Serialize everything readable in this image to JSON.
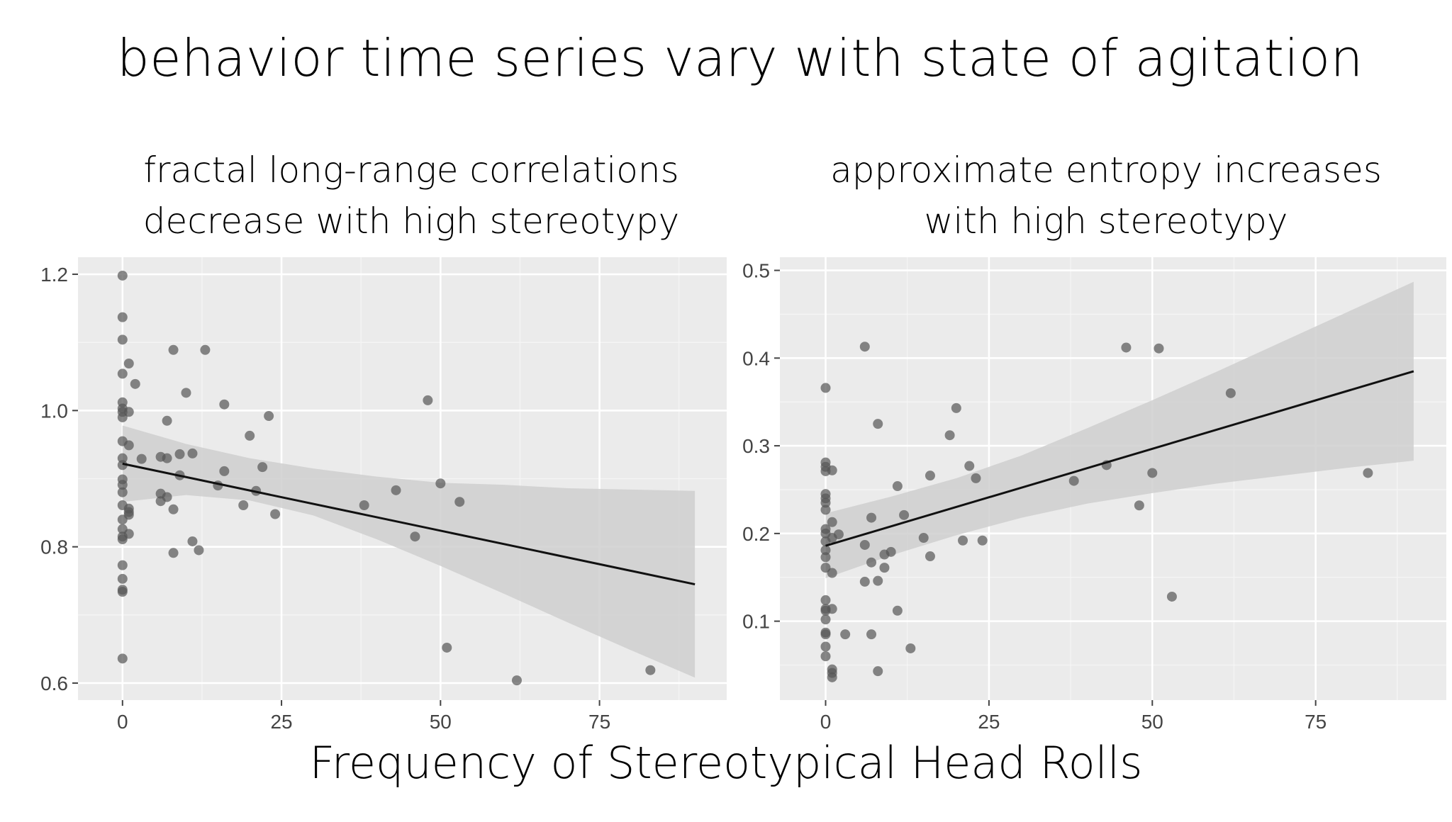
{
  "title": "behavior time series vary with state of agitation",
  "xlabel": "Frequency of Stereotypical Head Rolls",
  "colors": {
    "panel_bg": "#ebebeb",
    "grid_major": "#ffffff",
    "point": "#555555",
    "ribbon": "#cfcfcf",
    "line": "#111111"
  },
  "chart_data": [
    {
      "type": "scatter",
      "subtitle": [
        "fractal long-range correlations",
        "decrease with high stereotypy"
      ],
      "xlim": [
        -7,
        95
      ],
      "ylim": [
        0.575,
        1.225
      ],
      "xticks": [
        0,
        25,
        50,
        75
      ],
      "yticks": [
        0.6,
        0.8,
        1.0,
        1.2
      ],
      "ytick_labels": [
        "0.6",
        "0.8",
        "1.0",
        "1.2"
      ],
      "xtick_labels": [
        "0",
        "25",
        "50",
        "75"
      ],
      "fit": {
        "x": [
          0,
          90
        ],
        "y": [
          0.922,
          0.745
        ]
      },
      "ribbon": {
        "x": [
          0,
          10,
          20,
          30,
          40,
          50,
          60,
          70,
          80,
          90
        ],
        "lower": [
          0.866,
          0.876,
          0.868,
          0.846,
          0.811,
          0.772,
          0.731,
          0.689,
          0.648,
          0.608
        ],
        "upper": [
          0.978,
          0.951,
          0.93,
          0.915,
          0.903,
          0.894,
          0.891,
          0.886,
          0.884,
          0.882
        ]
      },
      "points": [
        [
          0,
          1.198
        ],
        [
          0,
          1.137
        ],
        [
          0,
          1.104
        ],
        [
          0,
          1.054
        ],
        [
          0,
          1.012
        ],
        [
          0,
          1.003
        ],
        [
          0,
          0.998
        ],
        [
          0,
          0.99
        ],
        [
          0,
          0.955
        ],
        [
          0,
          0.93
        ],
        [
          0,
          0.92
        ],
        [
          0,
          0.899
        ],
        [
          0,
          0.891
        ],
        [
          0,
          0.88
        ],
        [
          0,
          0.861
        ],
        [
          0,
          0.84
        ],
        [
          0,
          0.826
        ],
        [
          0,
          0.815
        ],
        [
          0,
          0.811
        ],
        [
          0,
          0.773
        ],
        [
          0,
          0.753
        ],
        [
          0,
          0.737
        ],
        [
          0,
          0.734
        ],
        [
          0,
          0.636
        ],
        [
          1,
          1.069
        ],
        [
          1,
          0.998
        ],
        [
          1,
          0.949
        ],
        [
          1,
          0.856
        ],
        [
          1,
          0.851
        ],
        [
          1,
          0.847
        ],
        [
          1,
          0.819
        ],
        [
          2,
          1.039
        ],
        [
          3,
          0.929
        ],
        [
          6,
          0.932
        ],
        [
          6,
          0.878
        ],
        [
          6,
          0.867
        ],
        [
          7,
          0.985
        ],
        [
          7,
          0.93
        ],
        [
          7,
          0.873
        ],
        [
          8,
          1.089
        ],
        [
          8,
          0.855
        ],
        [
          8,
          0.791
        ],
        [
          9,
          0.936
        ],
        [
          9,
          0.905
        ],
        [
          10,
          1.026
        ],
        [
          11,
          0.937
        ],
        [
          11,
          0.808
        ],
        [
          12,
          0.795
        ],
        [
          13,
          1.089
        ],
        [
          15,
          0.89
        ],
        [
          16,
          1.009
        ],
        [
          16,
          0.911
        ],
        [
          19,
          0.861
        ],
        [
          20,
          0.963
        ],
        [
          21,
          0.882
        ],
        [
          22,
          0.917
        ],
        [
          23,
          0.992
        ],
        [
          24,
          0.848
        ],
        [
          38,
          0.861
        ],
        [
          43,
          0.883
        ],
        [
          46,
          0.815
        ],
        [
          48,
          1.015
        ],
        [
          50,
          0.893
        ],
        [
          51,
          0.652
        ],
        [
          53,
          0.866
        ],
        [
          62,
          0.604
        ],
        [
          83,
          0.619
        ]
      ]
    },
    {
      "type": "scatter",
      "subtitle": [
        "approximate entropy increases",
        "with high stereotypy"
      ],
      "xlim": [
        -7,
        95
      ],
      "ylim": [
        0.01,
        0.515
      ],
      "xticks": [
        0,
        25,
        50,
        75
      ],
      "yticks": [
        0.1,
        0.2,
        0.3,
        0.4,
        0.5
      ],
      "ytick_labels": [
        "0.1",
        "0.2",
        "0.3",
        "0.4",
        "0.5"
      ],
      "xtick_labels": [
        "0",
        "25",
        "50",
        "75"
      ],
      "fit": {
        "x": [
          0,
          90
        ],
        "y": [
          0.186,
          0.385
        ]
      },
      "ribbon": {
        "x": [
          0,
          10,
          20,
          30,
          40,
          50,
          60,
          70,
          80,
          90
        ],
        "lower": [
          0.149,
          0.175,
          0.198,
          0.218,
          0.234,
          0.246,
          0.257,
          0.266,
          0.275,
          0.283
        ],
        "upper": [
          0.223,
          0.242,
          0.263,
          0.289,
          0.32,
          0.352,
          0.385,
          0.419,
          0.453,
          0.487
        ]
      },
      "points": [
        [
          0,
          0.366
        ],
        [
          0,
          0.281
        ],
        [
          0,
          0.276
        ],
        [
          0,
          0.271
        ],
        [
          0,
          0.245
        ],
        [
          0,
          0.24
        ],
        [
          0,
          0.235
        ],
        [
          0,
          0.227
        ],
        [
          0,
          0.205
        ],
        [
          0,
          0.2
        ],
        [
          0,
          0.191
        ],
        [
          0,
          0.181
        ],
        [
          0,
          0.173
        ],
        [
          0,
          0.161
        ],
        [
          0,
          0.124
        ],
        [
          0,
          0.114
        ],
        [
          0,
          0.112
        ],
        [
          0,
          0.102
        ],
        [
          0,
          0.087
        ],
        [
          0,
          0.085
        ],
        [
          0,
          0.071
        ],
        [
          0,
          0.06
        ],
        [
          1,
          0.272
        ],
        [
          1,
          0.213
        ],
        [
          1,
          0.195
        ],
        [
          1,
          0.155
        ],
        [
          1,
          0.114
        ],
        [
          1,
          0.045
        ],
        [
          1,
          0.041
        ],
        [
          1,
          0.036
        ],
        [
          2,
          0.199
        ],
        [
          3,
          0.085
        ],
        [
          6,
          0.413
        ],
        [
          6,
          0.187
        ],
        [
          6,
          0.145
        ],
        [
          7,
          0.218
        ],
        [
          7,
          0.167
        ],
        [
          7,
          0.085
        ],
        [
          8,
          0.325
        ],
        [
          8,
          0.146
        ],
        [
          8,
          0.043
        ],
        [
          9,
          0.176
        ],
        [
          9,
          0.161
        ],
        [
          10,
          0.179
        ],
        [
          11,
          0.254
        ],
        [
          11,
          0.112
        ],
        [
          12,
          0.221
        ],
        [
          13,
          0.069
        ],
        [
          15,
          0.195
        ],
        [
          16,
          0.266
        ],
        [
          16,
          0.174
        ],
        [
          19,
          0.312
        ],
        [
          20,
          0.343
        ],
        [
          21,
          0.192
        ],
        [
          22,
          0.277
        ],
        [
          23,
          0.263
        ],
        [
          24,
          0.192
        ],
        [
          38,
          0.26
        ],
        [
          43,
          0.278
        ],
        [
          46,
          0.412
        ],
        [
          48,
          0.232
        ],
        [
          50,
          0.269
        ],
        [
          51,
          0.411
        ],
        [
          53,
          0.128
        ],
        [
          62,
          0.36
        ],
        [
          83,
          0.269
        ]
      ]
    }
  ]
}
